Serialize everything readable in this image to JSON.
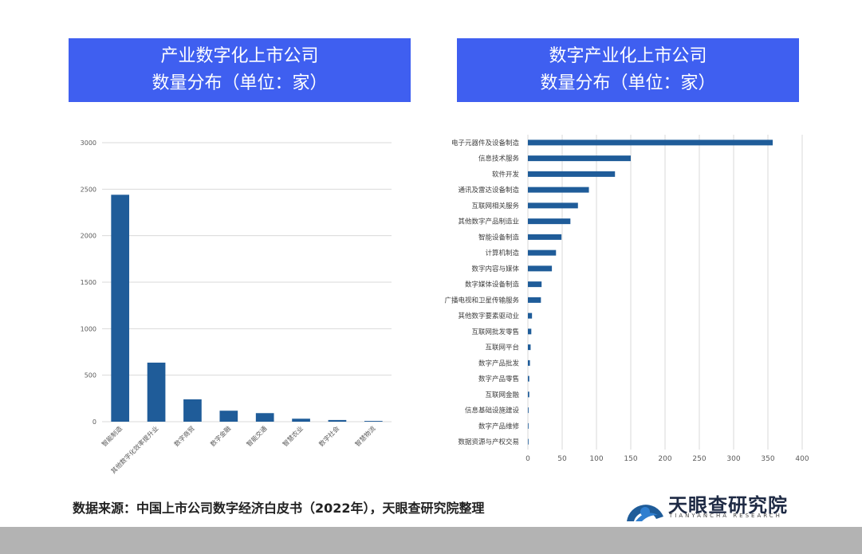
{
  "header": {
    "left": {
      "line1": "产业数字化上市公司",
      "line2": "数量分布（单位：家）"
    },
    "right": {
      "line1": "数字产业化上市公司",
      "line2": "数量分布（单位：家）"
    }
  },
  "chart_data": [
    {
      "type": "bar",
      "orientation": "vertical",
      "categories": [
        "智能制造",
        "其他数字化效率提升业",
        "数字商贸",
        "数字金融",
        "智能交通",
        "智慧农业",
        "数字社会",
        "智慧物流"
      ],
      "values": [
        2440,
        635,
        240,
        118,
        92,
        32,
        18,
        8
      ],
      "ylim": [
        0,
        3000
      ],
      "yticks": [
        0,
        500,
        1000,
        1500,
        2000,
        2500,
        3000
      ],
      "grid": true,
      "color": "#1f5c99"
    },
    {
      "type": "bar",
      "orientation": "horizontal",
      "categories": [
        "电子元器件及设备制造",
        "信息技术服务",
        "软件开发",
        "通讯及雷达设备制造",
        "互联网相关服务",
        "其他数字产品制造业",
        "智能设备制造",
        "计算机制造",
        "数字内容与媒体",
        "数字媒体设备制造",
        "广播电视和卫星传输服务",
        "其他数字要素驱动业",
        "互联网批发零售",
        "互联网平台",
        "数字产品批发",
        "数字产品零售",
        "互联网金融",
        "信息基础设施建设",
        "数字产品维修",
        "数据资源与产权交易"
      ],
      "values": [
        357,
        150,
        127,
        89,
        73,
        62,
        49,
        41,
        35,
        20,
        19,
        6,
        5,
        4,
        3,
        2,
        2,
        1,
        0.5,
        0.3
      ],
      "xlim": [
        0,
        400
      ],
      "xticks": [
        0,
        50,
        100,
        150,
        200,
        250,
        300,
        350,
        400
      ],
      "grid": true,
      "color": "#1f5c99"
    }
  ],
  "footer": {
    "source": "数据来源：中国上市公司数字经济白皮书（2022年），天眼查研究院整理",
    "logo_name": "天眼查研究院",
    "logo_sub": "TIANYANCHA RESEARCH",
    "logo_color": "#1f5c99"
  }
}
